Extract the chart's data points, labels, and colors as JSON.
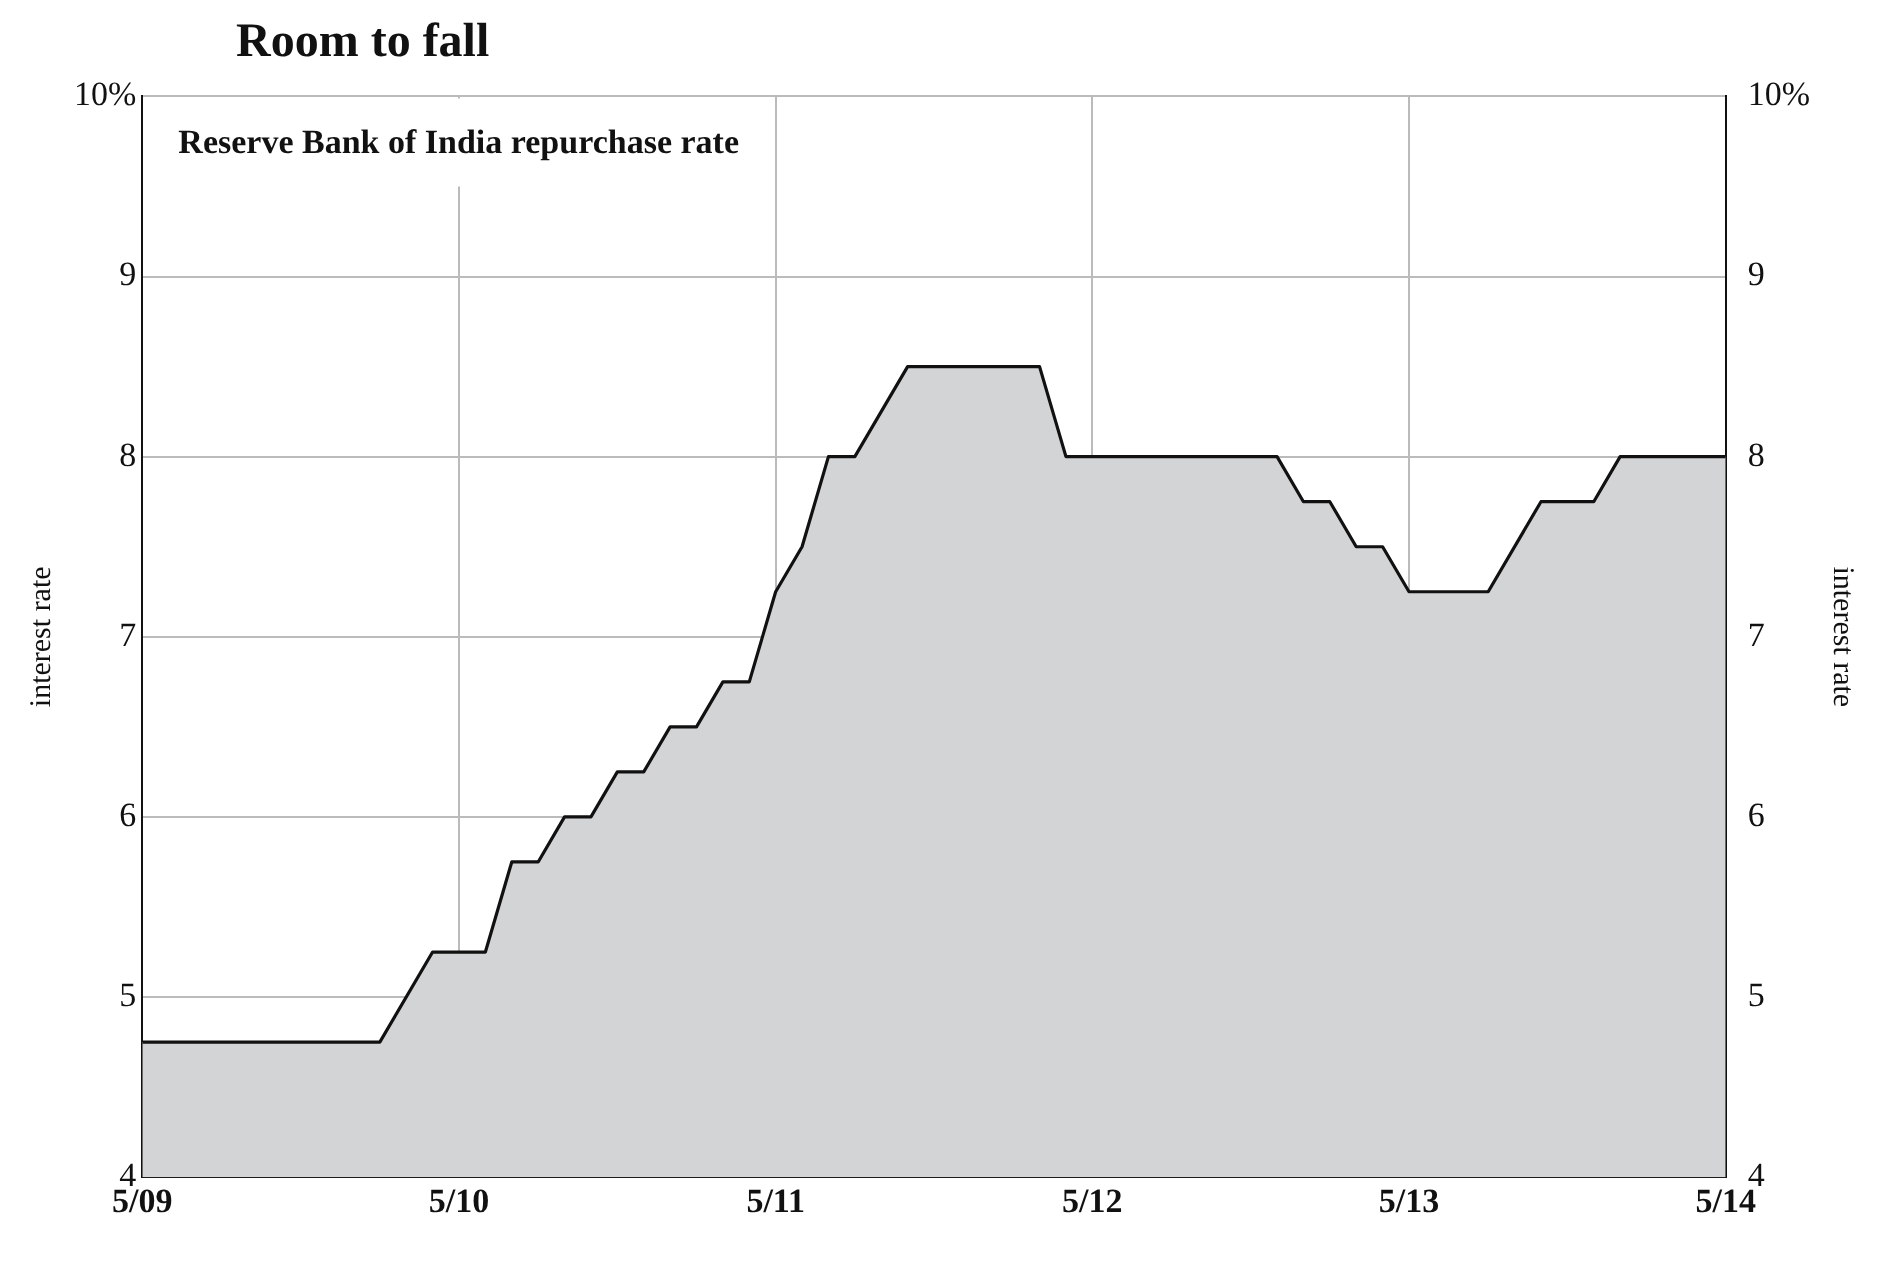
{
  "chart_data": {
    "type": "area",
    "title": "Room to fall",
    "subtitle": "Reserve Bank of India repurchase rate",
    "ylabel": "interest rate",
    "y2label": "interest rate",
    "x": [
      "2009-05",
      "2010-02",
      "2010-04",
      "2010-06",
      "2010-07",
      "2010-08",
      "2010-09",
      "2010-10",
      "2010-11",
      "2010-12",
      "2011-01",
      "2011-02",
      "2011-03",
      "2011-04",
      "2011-05",
      "2011-06",
      "2011-07",
      "2011-08",
      "2011-10",
      "2012-03",
      "2012-04",
      "2012-12",
      "2013-01",
      "2013-02",
      "2013-03",
      "2013-04",
      "2013-05",
      "2013-08",
      "2013-10",
      "2013-12",
      "2014-01",
      "2014-05"
    ],
    "series": [
      {
        "color": "#d3d4d6",
        "values": [
          4.75,
          4.75,
          5.25,
          5.25,
          5.75,
          5.75,
          6.0,
          6.0,
          6.25,
          6.25,
          6.5,
          6.5,
          6.75,
          6.75,
          7.25,
          7.5,
          8.0,
          8.0,
          8.5,
          8.5,
          8.0,
          8.0,
          7.75,
          7.75,
          7.5,
          7.5,
          7.25,
          7.25,
          7.75,
          7.75,
          8.0,
          8.0
        ]
      }
    ],
    "xlim": [
      "2009-05",
      "2014-05"
    ],
    "xticks": [
      {
        "value": "2009-05",
        "label": "5/09"
      },
      {
        "value": "2010-05",
        "label": "5/10"
      },
      {
        "value": "2011-05",
        "label": "5/11"
      },
      {
        "value": "2012-05",
        "label": "5/12"
      },
      {
        "value": "2013-05",
        "label": "5/13"
      },
      {
        "value": "2014-05",
        "label": "5/14"
      }
    ],
    "ylim": [
      4,
      10
    ],
    "yticks": [
      4,
      5,
      6,
      7,
      8,
      9,
      {
        "value": 10,
        "label": "10%"
      }
    ],
    "y2lim": [
      4,
      10
    ],
    "y2ticks": [
      4,
      5,
      6,
      7,
      8,
      9,
      {
        "value": 10,
        "label": "10%"
      }
    ],
    "grid": true,
    "legend": false,
    "line_style": "solid",
    "marker": "none"
  }
}
